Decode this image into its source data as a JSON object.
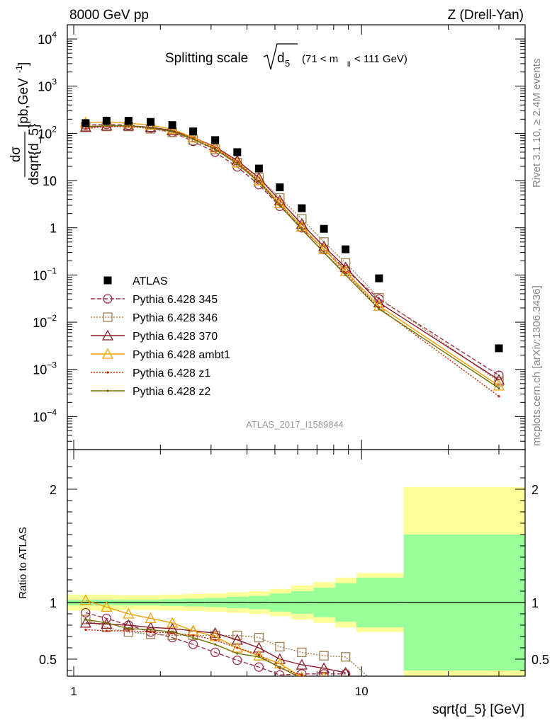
{
  "header": {
    "left": "8000 GeV pp",
    "right": "Z (Drell-Yan)"
  },
  "side_text": {
    "rivet": "Rivet 3.1.10, ≥ 2.4M events",
    "mcplots": "mcplots.cern.ch [arXiv:1306.3436]"
  },
  "analysis_label": "ATLAS_2017_I1589844",
  "colors": {
    "data": "#000000",
    "p345": "#a0304a",
    "p346": "#a08050",
    "p370": "#8b1a2a",
    "ambt1": "#f0a000",
    "z1": "#d02000",
    "z2": "#707000",
    "band_inner": "#99ff99",
    "band_outer": "#ffff99"
  },
  "chart_data": [
    {
      "type": "line",
      "title": "Splitting scale √d5 (71 < m_ll < 111 GeV)",
      "title_parts": {
        "main": "Splitting scale",
        "sub": "d",
        "sub_index": "5",
        "range": "(71 < m",
        "range_sub": "ll",
        "range_end": " < 111 GeV)"
      },
      "ylabel": "dσ / dsqrt{d_5} [pb,GeV^-1]",
      "ylabel_num": "dσ",
      "ylabel_den": "dsqrt{d_5}",
      "ylabel_unit": "[pb,GeV",
      "ylabel_unit_exp": "-1",
      "ylabel_unit_end": "]",
      "y_scale": "log",
      "ylim": [
        2e-05,
        20000
      ],
      "y_ticks": [
        {
          "label": "10",
          "exp": "4",
          "value": 10000
        },
        {
          "label": "10",
          "exp": "3",
          "value": 1000
        },
        {
          "label": "10",
          "exp": "2",
          "value": 100
        },
        {
          "label": "10",
          "exp": "",
          "value": 10
        },
        {
          "label": "1",
          "exp": "",
          "value": 1
        },
        {
          "label": "10",
          "exp": "−1",
          "value": 0.1
        },
        {
          "label": "10",
          "exp": "−2",
          "value": 0.01
        },
        {
          "label": "10",
          "exp": "−3",
          "value": 0.001
        },
        {
          "label": "10",
          "exp": "−4",
          "value": 0.0001
        }
      ],
      "x_scale": "log",
      "xlim": [
        0.95,
        37
      ],
      "x": [
        1.1,
        1.3,
        1.55,
        1.85,
        2.2,
        2.6,
        3.1,
        3.7,
        4.4,
        5.2,
        6.2,
        7.4,
        8.8,
        11.5,
        30
      ],
      "data_series": {
        "name": "ATLAS",
        "values": [
          165,
          185,
          185,
          175,
          150,
          110,
          72,
          40,
          18,
          7.2,
          2.6,
          0.95,
          0.35,
          0.085,
          0.0028
        ]
      },
      "series": [
        {
          "name": "Pythia 6.428 345",
          "marker": "circle",
          "dash": "6,3",
          "color_key": "p345",
          "values": [
            150,
            155,
            150,
            130,
            105,
            68,
            40,
            19.5,
            8.2,
            2.85,
            1.0,
            0.35,
            0.13,
            0.031,
            0.00075
          ]
        },
        {
          "name": "Pythia 6.428 346",
          "marker": "square",
          "dash": "2,2",
          "color_key": "p346",
          "values": [
            140,
            140,
            140,
            125,
            105,
            72,
            46,
            24,
            11.5,
            4.3,
            1.55,
            0.5,
            0.18,
            0.033,
            0.00055
          ]
        },
        {
          "name": "Pythia 6.428 370",
          "marker": "triangle",
          "dash": "",
          "color_key": "p370",
          "values": [
            135,
            145,
            145,
            135,
            115,
            82,
            52,
            26.5,
            11.5,
            3.8,
            1.2,
            0.4,
            0.145,
            0.026,
            0.0006
          ]
        },
        {
          "name": "Pythia 6.428 ambt1",
          "marker": "triangle",
          "dash": "",
          "color_key": "ambt1",
          "values": [
            170,
            175,
            165,
            150,
            122,
            82,
            50,
            24,
            10,
            3.3,
            1.05,
            0.35,
            0.12,
            0.022,
            0.00045
          ]
        },
        {
          "name": "Pythia 6.428 z1",
          "marker": "dot",
          "dash": "2,2",
          "color_key": "z1",
          "values": [
            125,
            140,
            140,
            130,
            110,
            78,
            48,
            24,
            9.8,
            3.1,
            0.95,
            0.3,
            0.11,
            0.02,
            0.00027
          ]
        },
        {
          "name": "Pythia 6.428 z2",
          "marker": "dot",
          "dash": "",
          "color_key": "z2",
          "values": [
            140,
            145,
            145,
            132,
            110,
            76,
            46,
            22.5,
            9.3,
            3.0,
            0.92,
            0.3,
            0.1,
            0.019,
            0.0004
          ]
        }
      ],
      "legend_position": "lower-left"
    },
    {
      "type": "line",
      "ylabel": "Ratio to ATLAS",
      "xlabel": "sqrt{d_5} [GeV]",
      "ylim": [
        0.35,
        2.35
      ],
      "y_ticks": [
        0.5,
        1,
        2
      ],
      "x_ticks": [
        {
          "label": "1",
          "value": 1
        },
        {
          "label": "10",
          "value": 10
        }
      ],
      "reference": 1,
      "uncertainty_bins": {
        "edges": [
          0.95,
          1.2,
          1.42,
          1.68,
          2.0,
          2.4,
          2.85,
          3.4,
          4.05,
          4.8,
          5.7,
          6.8,
          8.1,
          9.6,
          14.0,
          37
        ],
        "inner": [
          0.025,
          0.025,
          0.025,
          0.025,
          0.03,
          0.035,
          0.04,
          0.05,
          0.06,
          0.08,
          0.1,
          0.13,
          0.17,
          0.22,
          0.6
        ],
        "outer": [
          0.07,
          0.07,
          0.065,
          0.065,
          0.07,
          0.075,
          0.08,
          0.09,
          0.1,
          0.12,
          0.15,
          0.18,
          0.22,
          0.26,
          1.02
        ]
      },
      "series": [
        {
          "name": "Pythia 6.428 345",
          "values": [
            0.91,
            0.86,
            0.8,
            0.74,
            0.69,
            0.63,
            0.56,
            0.49,
            0.43,
            0.36,
            0.37,
            0.37,
            0.37
          ]
        },
        {
          "name": "Pythia 6.428 346",
          "values": [
            0.85,
            0.78,
            0.74,
            0.72,
            0.71,
            0.71,
            0.71,
            0.71,
            0.69,
            0.61,
            0.56,
            0.53,
            0.52,
            0.26
          ]
        },
        {
          "name": "Pythia 6.428 370",
          "values": [
            0.82,
            0.81,
            0.8,
            0.78,
            0.77,
            0.75,
            0.73,
            0.67,
            0.6,
            0.5,
            0.45,
            0.42,
            0.38
          ]
        },
        {
          "name": "Pythia 6.428 ambt1",
          "values": [
            1.02,
            0.96,
            0.9,
            0.86,
            0.82,
            0.75,
            0.7,
            0.6,
            0.53,
            0.46,
            0.34,
            0.34
          ]
        },
        {
          "name": "Pythia 6.428 z1",
          "values": [
            0.76,
            0.75,
            0.75,
            0.74,
            0.73,
            0.71,
            0.67,
            0.6,
            0.54,
            0.42,
            0.36,
            0.32
          ]
        },
        {
          "name": "Pythia 6.428 z2",
          "values": [
            0.85,
            0.82,
            0.77,
            0.76,
            0.74,
            0.69,
            0.63,
            0.55,
            0.52,
            0.43,
            0.33,
            0.3
          ]
        }
      ]
    }
  ]
}
